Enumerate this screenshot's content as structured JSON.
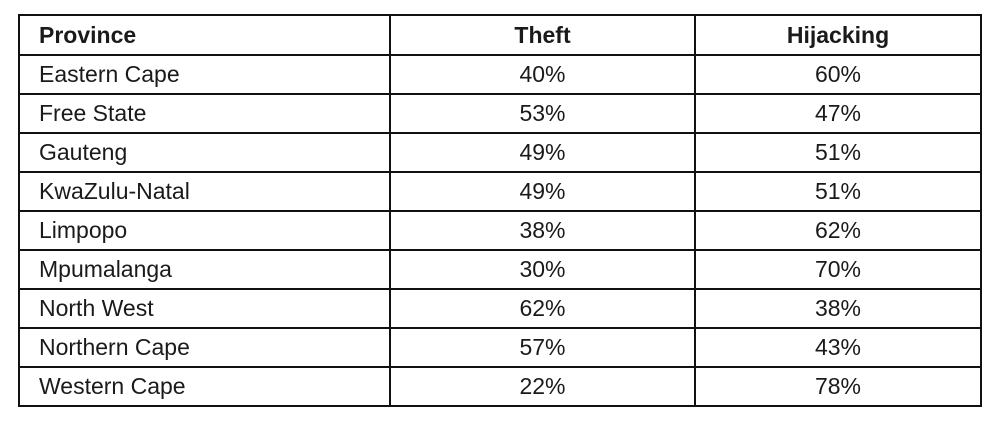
{
  "table": {
    "headers": [
      "Province",
      "Theft",
      "Hijacking"
    ],
    "rows": [
      [
        "Eastern Cape",
        "40%",
        "60%"
      ],
      [
        "Free State",
        "53%",
        "47%"
      ],
      [
        "Gauteng",
        "49%",
        "51%"
      ],
      [
        "KwaZulu-Natal",
        "49%",
        "51%"
      ],
      [
        "Limpopo",
        "38%",
        "62%"
      ],
      [
        "Mpumalanga",
        "30%",
        "70%"
      ],
      [
        "North West",
        "62%",
        "38%"
      ],
      [
        "Northern Cape",
        "57%",
        "43%"
      ],
      [
        "Western Cape",
        "22%",
        "78%"
      ]
    ]
  }
}
